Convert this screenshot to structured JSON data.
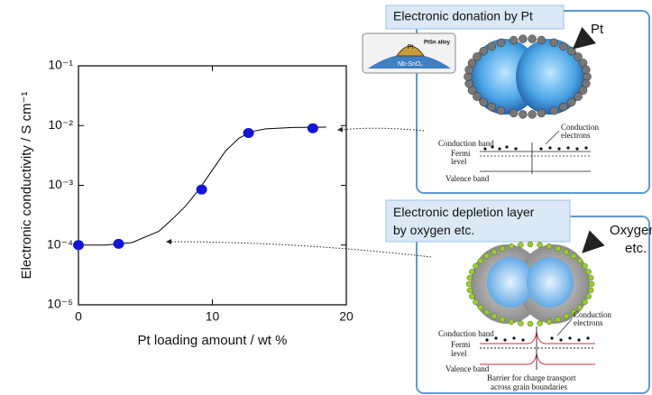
{
  "chart_data": {
    "type": "scatter",
    "x_label": "Pt loading amount / wt %",
    "y_label": "Electronic conductivity / S cm⁻¹",
    "xlim": [
      0,
      20
    ],
    "xticks": [
      0,
      10,
      20
    ],
    "ylim": [
      1e-05,
      0.1
    ],
    "ylog": true,
    "yticks": [
      {
        "value": 1e-05,
        "label": "10⁻⁵"
      },
      {
        "value": 0.0001,
        "label": "10⁻⁴"
      },
      {
        "value": 0.001,
        "label": "10⁻³"
      },
      {
        "value": 0.01,
        "label": "10⁻²"
      },
      {
        "value": 0.1,
        "label": "10⁻¹"
      }
    ],
    "series": [
      {
        "type": "scatter",
        "color": "#1414d2",
        "x": [
          0,
          3,
          9.2,
          12.7,
          17.5
        ],
        "values": [
          0.0001,
          0.000105,
          0.00085,
          0.0075,
          0.009
        ]
      },
      {
        "type": "line",
        "color": "#000000",
        "x": [
          0,
          2,
          4,
          6,
          7,
          8,
          9,
          10,
          11,
          12,
          13,
          14,
          16,
          18.5
        ],
        "values": [
          0.0001,
          0.0001,
          0.00011,
          0.00017,
          0.00027,
          0.00045,
          0.00085,
          0.0018,
          0.0038,
          0.0062,
          0.008,
          0.0088,
          0.0093,
          0.0094
        ]
      }
    ]
  },
  "diagrams": {
    "top": {
      "title": "Electronic donation by Pt",
      "inset_top": "Pt",
      "inset_alloy": "PtSn alloy",
      "inset_support": "Nb-SnO₂",
      "particle_label": "Pt",
      "conduction_electrons": [
        "Conduction",
        "electrons"
      ],
      "conduction_band": "Conduction band",
      "fermi": [
        "Fermi",
        "level"
      ],
      "valence_band": "Valence band"
    },
    "bottom": {
      "title": [
        "Electronic depletion layer",
        "by oxygen etc."
      ],
      "particle_label": [
        "Oxygen",
        "etc."
      ],
      "conduction_band": "Conduction band",
      "conduction_electrons": [
        "Conduction",
        "electrons"
      ],
      "fermi": [
        "Fermi",
        "level"
      ],
      "valence_band": "Valence band",
      "barrier": [
        "Barrier for charge transport",
        "across grain boundaries"
      ]
    }
  }
}
